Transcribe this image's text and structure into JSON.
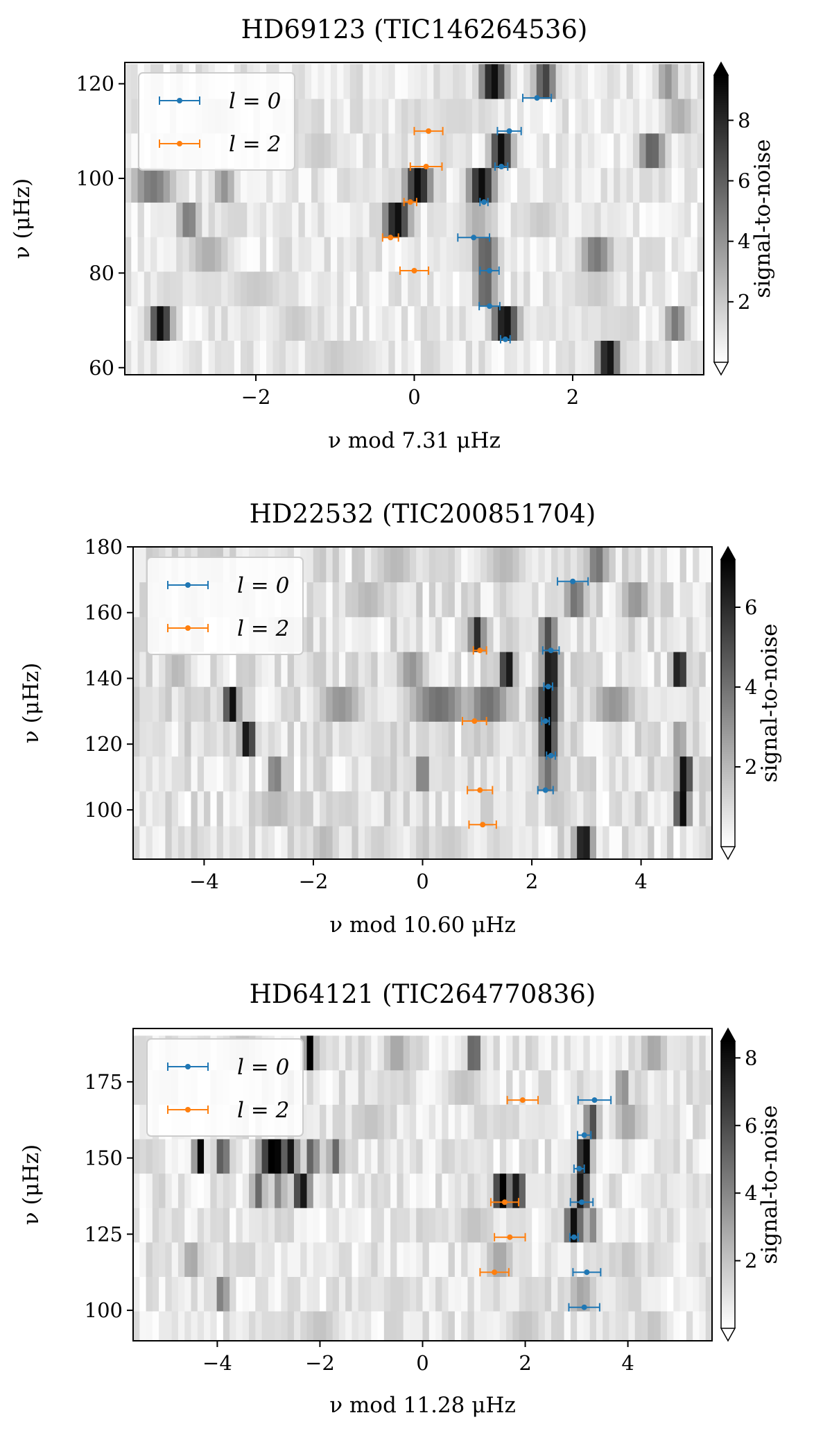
{
  "chart_data": [
    {
      "type": "heatmap",
      "title": "HD69123 (TIC146264536)",
      "xlabel": "ν mod 7.31 μHz",
      "ylabel": "ν (μHz)",
      "colorbar_label": "signal-to-noise",
      "xlim": [
        -3.655,
        3.655
      ],
      "ylim": [
        58.5,
        124.5
      ],
      "xticks": [
        -2,
        0,
        2
      ],
      "xtick_labels": [
        "−2",
        "0",
        "2"
      ],
      "yticks": [
        60,
        80,
        100,
        120
      ],
      "yticks_labels": [
        "60",
        "80",
        "100",
        "120"
      ],
      "cbar_range": [
        0,
        9.5
      ],
      "cbar_ticks": [
        2,
        4,
        6,
        8
      ],
      "cbar_tick_labels": [
        "2",
        "4",
        "6",
        "8"
      ],
      "legend": [
        "l = 0",
        "l = 2"
      ],
      "row_height": 7.31,
      "rows": [
        {
          "y": 62.1,
          "peaks": [
            [
              2.45,
              0.1,
              9
            ],
            [
              -1.0,
              0.2,
              2
            ],
            [
              -0.8,
              0.3,
              1.5
            ]
          ]
        },
        {
          "y": 69.4,
          "peaks": [
            [
              -3.2,
              0.1,
              9
            ],
            [
              1.15,
              0.12,
              9
            ],
            [
              3.3,
              0.1,
              5
            ],
            [
              -1.5,
              0.2,
              2
            ]
          ]
        },
        {
          "y": 76.7,
          "peaks": [
            [
              0.9,
              0.1,
              6
            ],
            [
              -2.0,
              0.3,
              2
            ],
            [
              2.3,
              0.2,
              2
            ]
          ]
        },
        {
          "y": 84.0,
          "peaks": [
            [
              0.9,
              0.12,
              6
            ],
            [
              2.3,
              0.15,
              5
            ],
            [
              -2.6,
              0.2,
              3
            ]
          ]
        },
        {
          "y": 91.3,
          "peaks": [
            [
              -0.22,
              0.12,
              9
            ],
            [
              -2.85,
              0.1,
              5
            ],
            [
              0.8,
              0.15,
              3
            ],
            [
              1.6,
              0.2,
              2
            ]
          ]
        },
        {
          "y": 98.6,
          "peaks": [
            [
              0.05,
              0.12,
              9
            ],
            [
              0.85,
              0.12,
              9
            ],
            [
              -3.3,
              0.2,
              5
            ],
            [
              -2.4,
              0.1,
              4
            ]
          ]
        },
        {
          "y": 105.9,
          "peaks": [
            [
              1.1,
              0.1,
              9
            ],
            [
              3.0,
              0.12,
              6
            ],
            [
              -1.2,
              0.2,
              2
            ]
          ]
        },
        {
          "y": 113.2,
          "peaks": [
            [
              3.35,
              0.15,
              3
            ],
            [
              -2.5,
              0.2,
              2
            ],
            [
              0.5,
              0.3,
              1.5
            ]
          ]
        },
        {
          "y": 120.5,
          "peaks": [
            [
              1.65,
              0.1,
              7
            ],
            [
              1.0,
              0.12,
              9
            ],
            [
              3.2,
              0.1,
              4
            ]
          ]
        }
      ],
      "series": [
        {
          "name": "l = 0",
          "color": "#1f77b4",
          "points": [
            {
              "x": 1.55,
              "y": 117.0,
              "err": 0.18
            },
            {
              "x": 1.2,
              "y": 110.0,
              "err": 0.15
            },
            {
              "x": 1.1,
              "y": 102.5,
              "err": 0.08
            },
            {
              "x": 0.88,
              "y": 95.0,
              "err": 0.05
            },
            {
              "x": 0.75,
              "y": 87.5,
              "err": 0.2
            },
            {
              "x": 0.95,
              "y": 80.5,
              "err": 0.12
            },
            {
              "x": 0.95,
              "y": 73.0,
              "err": 0.13
            },
            {
              "x": 1.15,
              "y": 66.0,
              "err": 0.06
            }
          ]
        },
        {
          "name": "l = 2",
          "color": "#ff7f0e",
          "points": [
            {
              "x": 0.18,
              "y": 110.0,
              "err": 0.18
            },
            {
              "x": 0.15,
              "y": 102.5,
              "err": 0.2
            },
            {
              "x": -0.05,
              "y": 95.0,
              "err": 0.08
            },
            {
              "x": -0.3,
              "y": 87.5,
              "err": 0.1
            },
            {
              "x": 0.0,
              "y": 80.5,
              "err": 0.18
            }
          ]
        }
      ]
    },
    {
      "type": "heatmap",
      "title": "HD22532 (TIC200851704)",
      "xlabel": "ν mod 10.60 μHz",
      "ylabel": "ν (μHz)",
      "colorbar_label": "signal-to-noise",
      "xlim": [
        -5.3,
        5.3
      ],
      "ylim": [
        85,
        180
      ],
      "xticks": [
        -4,
        -2,
        0,
        2,
        4
      ],
      "xtick_labels": [
        "−4",
        "−2",
        "0",
        "2",
        "4"
      ],
      "yticks": [
        100,
        120,
        140,
        160,
        180
      ],
      "yticks_labels": [
        "100",
        "120",
        "140",
        "160",
        "180"
      ],
      "cbar_range": [
        0,
        7.2
      ],
      "cbar_ticks": [
        2,
        4,
        6
      ],
      "cbar_tick_labels": [
        "2",
        "4",
        "6"
      ],
      "legend": [
        "l = 0",
        "l = 2"
      ],
      "row_height": 10.6,
      "rows": [
        {
          "y": 89.8,
          "peaks": [
            [
              2.95,
              0.12,
              7
            ],
            [
              -1.8,
              0.2,
              2
            ],
            [
              0.5,
              0.3,
              1.5
            ]
          ]
        },
        {
          "y": 100.4,
          "peaks": [
            [
              4.75,
              0.1,
              7
            ],
            [
              -2.7,
              0.3,
              2
            ],
            [
              2.5,
              0.2,
              1.5
            ]
          ]
        },
        {
          "y": 111.0,
          "peaks": [
            [
              4.8,
              0.1,
              7
            ],
            [
              -2.7,
              0.1,
              4
            ],
            [
              0.0,
              0.1,
              4
            ],
            [
              2.3,
              0.15,
              4
            ]
          ]
        },
        {
          "y": 121.6,
          "peaks": [
            [
              -3.2,
              0.1,
              7
            ],
            [
              2.3,
              0.12,
              7
            ],
            [
              4.7,
              0.1,
              3
            ]
          ]
        },
        {
          "y": 132.2,
          "peaks": [
            [
              -3.5,
              0.1,
              7
            ],
            [
              2.3,
              0.15,
              7
            ],
            [
              -1.5,
              0.3,
              3
            ],
            [
              0.3,
              0.4,
              4
            ],
            [
              1.2,
              0.3,
              4
            ],
            [
              3.5,
              0.3,
              3
            ]
          ]
        },
        {
          "y": 142.8,
          "peaks": [
            [
              1.55,
              0.1,
              7
            ],
            [
              2.35,
              0.12,
              7
            ],
            [
              4.7,
              0.1,
              7
            ],
            [
              -0.2,
              0.2,
              3
            ],
            [
              -4.5,
              0.2,
              2
            ]
          ]
        },
        {
          "y": 153.4,
          "peaks": [
            [
              1.0,
              0.1,
              6
            ],
            [
              2.3,
              0.12,
              5
            ],
            [
              -2.5,
              0.3,
              2
            ]
          ]
        },
        {
          "y": 164.0,
          "peaks": [
            [
              2.8,
              0.15,
              4
            ],
            [
              -1.0,
              0.3,
              2
            ],
            [
              3.9,
              0.2,
              3
            ]
          ]
        },
        {
          "y": 174.6,
          "peaks": [
            [
              3.2,
              0.15,
              4
            ],
            [
              -0.5,
              0.3,
              2
            ],
            [
              1.5,
              0.3,
              2
            ]
          ]
        }
      ],
      "series": [
        {
          "name": "l = 0",
          "color": "#1f77b4",
          "points": [
            {
              "x": 2.75,
              "y": 169.5,
              "err": 0.28
            },
            {
              "x": 2.35,
              "y": 148.5,
              "err": 0.15
            },
            {
              "x": 2.3,
              "y": 137.5,
              "err": 0.08
            },
            {
              "x": 2.25,
              "y": 127.0,
              "err": 0.07
            },
            {
              "x": 2.35,
              "y": 116.5,
              "err": 0.08
            },
            {
              "x": 2.25,
              "y": 106.0,
              "err": 0.14
            }
          ]
        },
        {
          "name": "l = 2",
          "color": "#ff7f0e",
          "points": [
            {
              "x": 1.05,
              "y": 148.5,
              "err": 0.12
            },
            {
              "x": 0.95,
              "y": 127.0,
              "err": 0.22
            },
            {
              "x": 1.05,
              "y": 106.0,
              "err": 0.23
            },
            {
              "x": 1.1,
              "y": 95.5,
              "err": 0.25
            }
          ]
        }
      ]
    },
    {
      "type": "heatmap",
      "title": "HD64121 (TIC264770836)",
      "xlabel": "ν mod 11.28 μHz",
      "ylabel": "ν (μHz)",
      "colorbar_label": "signal-to-noise",
      "xlim": [
        -5.64,
        5.64
      ],
      "ylim": [
        90,
        192.5
      ],
      "xticks": [
        -4,
        -2,
        0,
        2,
        4
      ],
      "xtick_labels": [
        "−4",
        "−2",
        "0",
        "2",
        "4"
      ],
      "yticks": [
        100,
        125,
        150,
        175
      ],
      "yticks_labels": [
        "100",
        "125",
        "150",
        "175"
      ],
      "cbar_range": [
        0,
        8.5
      ],
      "cbar_ticks": [
        2,
        4,
        6,
        8
      ],
      "cbar_tick_labels": [
        "2",
        "4",
        "6",
        "8"
      ],
      "legend": [
        "l = 0",
        "l = 2"
      ],
      "row_height": 11.28,
      "rows": [
        {
          "y": 94.1,
          "peaks": [
            [
              -2.0,
              0.3,
              2
            ],
            [
              2.0,
              0.3,
              2
            ],
            [
              4.5,
              0.2,
              2
            ]
          ]
        },
        {
          "y": 105.4,
          "peaks": [
            [
              -3.9,
              0.08,
              5
            ],
            [
              3.1,
              0.2,
              3
            ],
            [
              -0.5,
              0.3,
              1.5
            ]
          ]
        },
        {
          "y": 116.7,
          "peaks": [
            [
              -4.5,
              0.15,
              3
            ],
            [
              1.5,
              0.2,
              3
            ],
            [
              4.0,
              0.2,
              2
            ]
          ]
        },
        {
          "y": 128.0,
          "peaks": [
            [
              2.95,
              0.12,
              8
            ],
            [
              3.3,
              0.1,
              4
            ],
            [
              1.0,
              0.3,
              2
            ]
          ]
        },
        {
          "y": 139.3,
          "peaks": [
            [
              1.55,
              0.12,
              9
            ],
            [
              1.85,
              0.1,
              8
            ],
            [
              3.1,
              0.1,
              8
            ],
            [
              -2.35,
              0.12,
              8
            ],
            [
              -3.2,
              0.1,
              5
            ],
            [
              -2.8,
              0.1,
              4
            ]
          ]
        },
        {
          "y": 150.6,
          "peaks": [
            [
              -4.35,
              0.07,
              9
            ],
            [
              -2.9,
              0.2,
              9
            ],
            [
              -2.55,
              0.08,
              8
            ],
            [
              -3.9,
              0.1,
              6
            ],
            [
              -2.15,
              0.08,
              6
            ],
            [
              3.15,
              0.1,
              9
            ],
            [
              -1.7,
              0.1,
              5
            ]
          ]
        },
        {
          "y": 161.9,
          "peaks": [
            [
              3.3,
              0.1,
              6
            ],
            [
              4.0,
              0.2,
              3
            ],
            [
              -1.0,
              0.3,
              2
            ]
          ]
        },
        {
          "y": 173.2,
          "peaks": [
            [
              3.9,
              0.1,
              4
            ],
            [
              -2.6,
              0.1,
              3
            ],
            [
              0.8,
              0.3,
              2
            ]
          ]
        },
        {
          "y": 184.5,
          "peaks": [
            [
              -2.2,
              0.08,
              9
            ],
            [
              1.0,
              0.1,
              6
            ],
            [
              4.5,
              0.2,
              3
            ],
            [
              -0.5,
              0.2,
              3
            ],
            [
              -3.5,
              0.3,
              2
            ]
          ]
        }
      ],
      "series": [
        {
          "name": "l = 0",
          "color": "#1f77b4",
          "points": [
            {
              "x": 3.35,
              "y": 169.0,
              "err": 0.32
            },
            {
              "x": 3.15,
              "y": 157.5,
              "err": 0.13
            },
            {
              "x": 3.05,
              "y": 146.5,
              "err": 0.1
            },
            {
              "x": 3.1,
              "y": 135.5,
              "err": 0.22
            },
            {
              "x": 2.95,
              "y": 124.0,
              "err": 0.08
            },
            {
              "x": 3.2,
              "y": 112.5,
              "err": 0.27
            },
            {
              "x": 3.15,
              "y": 101.0,
              "err": 0.3
            }
          ]
        },
        {
          "name": "l = 2",
          "color": "#ff7f0e",
          "points": [
            {
              "x": 1.95,
              "y": 169.0,
              "err": 0.3
            },
            {
              "x": 1.6,
              "y": 135.5,
              "err": 0.27
            },
            {
              "x": 1.7,
              "y": 124.0,
              "err": 0.3
            },
            {
              "x": 1.4,
              "y": 112.5,
              "err": 0.28
            }
          ]
        }
      ]
    }
  ]
}
